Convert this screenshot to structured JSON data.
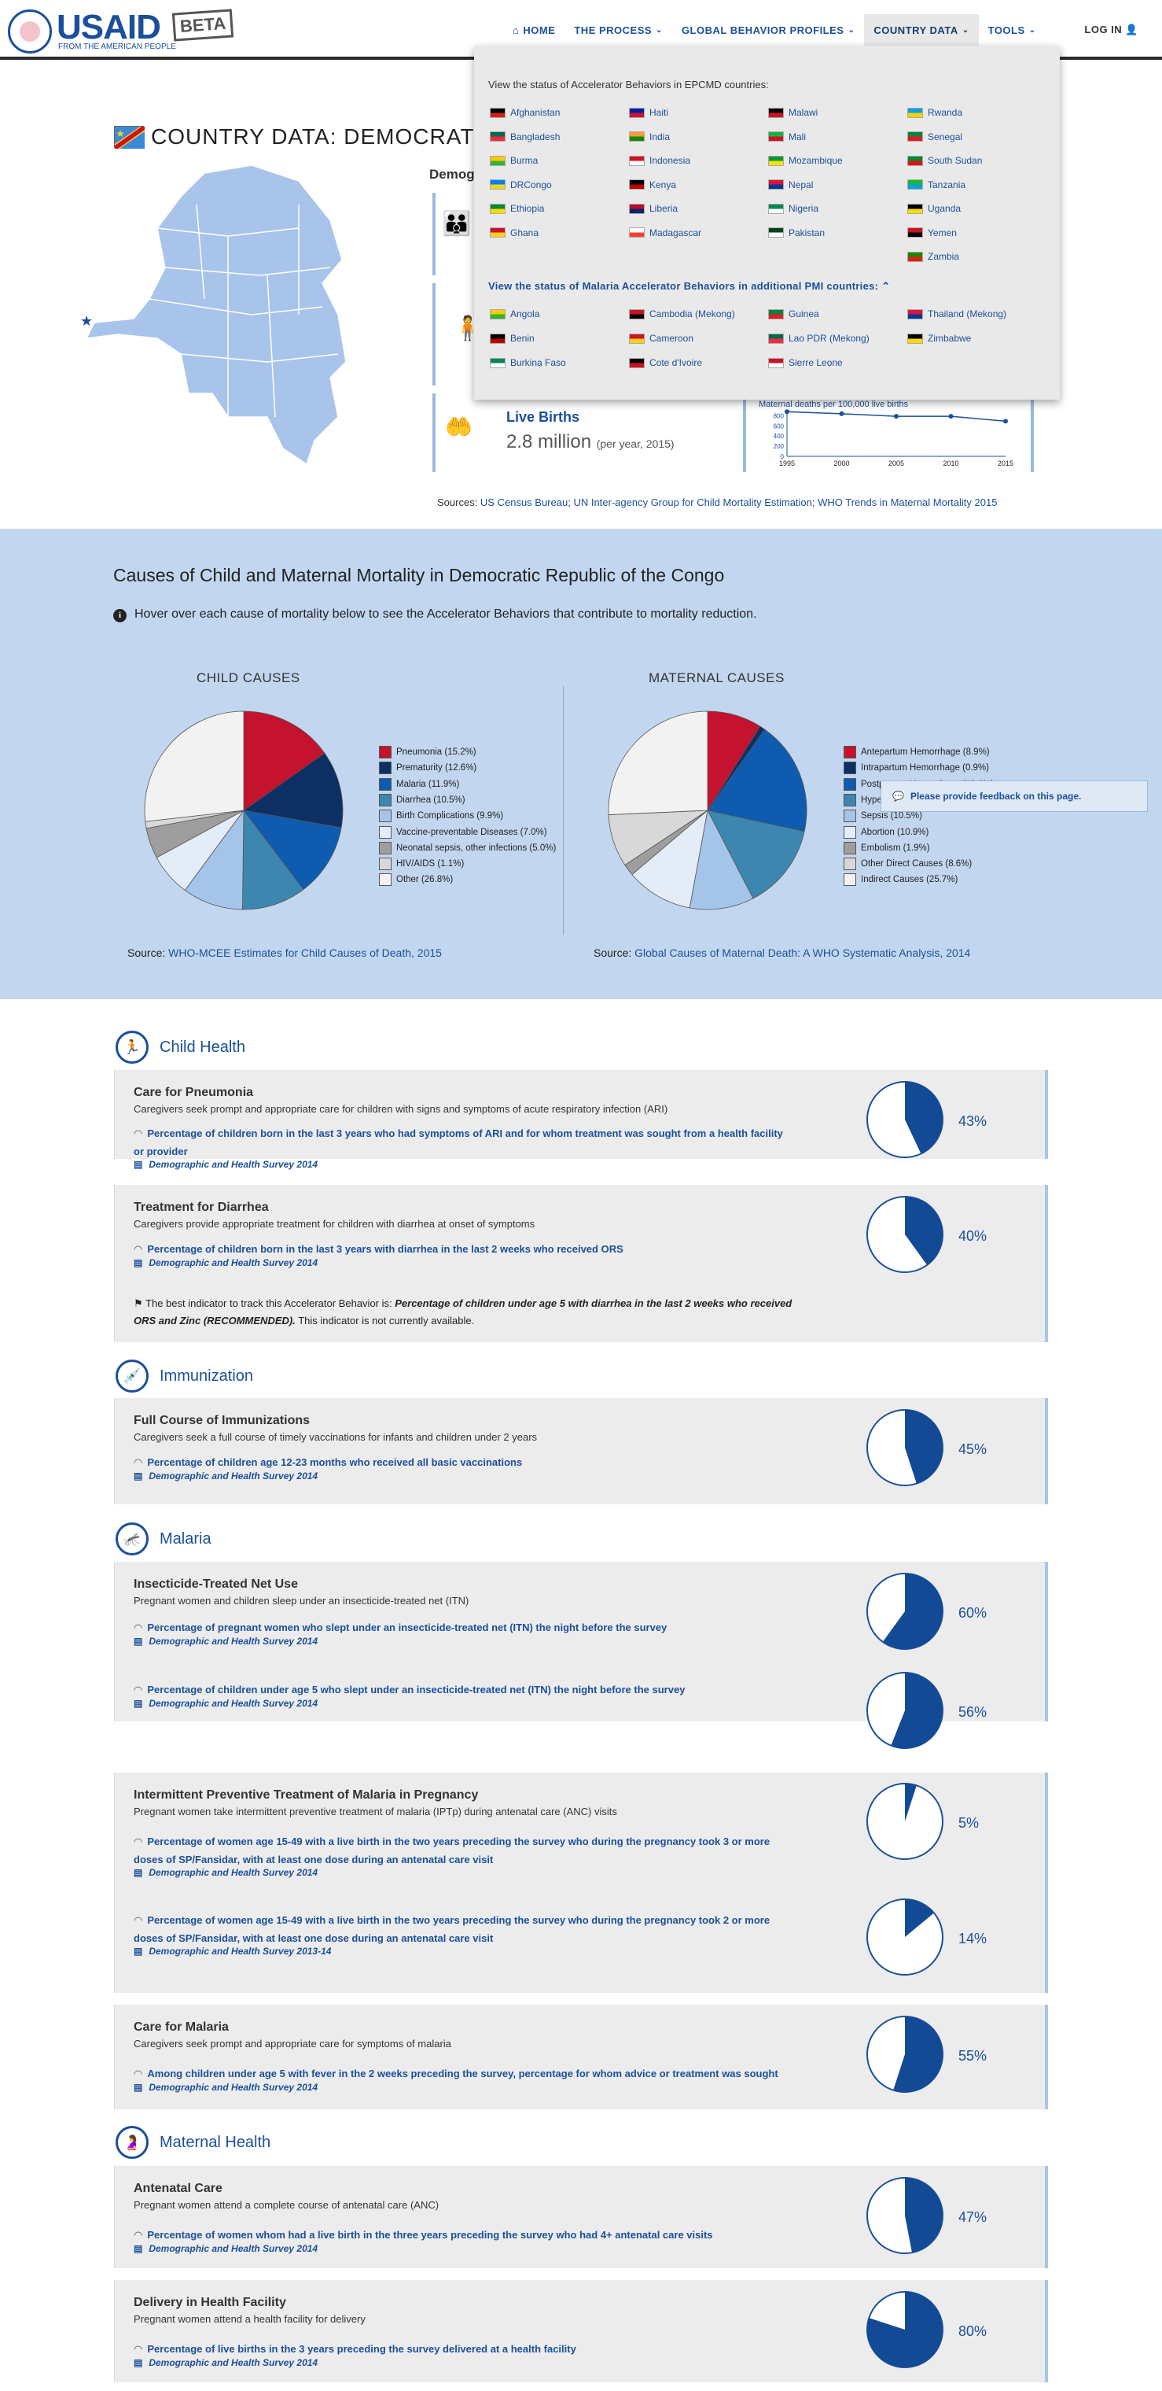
{
  "header": {
    "logo": "USAID",
    "tagline": "FROM THE AMERICAN PEOPLE",
    "beta": "BETA",
    "nav": [
      {
        "label": "HOME",
        "icon": "home-icon"
      },
      {
        "label": "THE PROCESS",
        "icon": "chevron-down-icon"
      },
      {
        "label": "GLOBAL BEHAVIOR PROFILES",
        "icon": "chevron-down-icon"
      },
      {
        "label": "COUNTRY DATA",
        "icon": "chevron-down-icon"
      },
      {
        "label": "TOOLS",
        "icon": "chevron-down-icon"
      }
    ],
    "login": "LOG IN"
  },
  "dropdown": {
    "intro": "View the status of Accelerator Behaviors in EPCMD countries:",
    "epcmd_countries": [
      "Afghanistan",
      "Bangladesh",
      "Burma",
      "DRCongo",
      "Ethiopia",
      "Ghana",
      "Haiti",
      "India",
      "Indonesia",
      "Kenya",
      "Liberia",
      "Madagascar",
      "Malawi",
      "Mali",
      "Mozambique",
      "Nepal",
      "Nigeria",
      "Pakistan",
      "Rwanda",
      "Senegal",
      "South Sudan",
      "Tanzania",
      "Uganda",
      "Yemen",
      "Zambia"
    ],
    "malaria_heading": "View the status of Malaria Accelerator Behaviors in additional PMI countries:",
    "pmi_countries": [
      "Angola",
      "Benin",
      "Burkina Faso",
      "Cambodia (Mekong)",
      "Cameroon",
      "Cote d'Ivoire",
      "Guinea",
      "Lao PDR (Mekong)",
      "Sierre Leone",
      "Thailand (Mekong)",
      "Zimbabwe"
    ]
  },
  "country": {
    "title": "COUNTRY DATA: DEMOCRATIC REPUBLIC OF THE CONGO",
    "demo_heading": "Demographics",
    "live_births_label": "Live Births",
    "live_births_value": "2.8 million",
    "live_births_unit": "(per year, 2015)",
    "mm_chart_label": "Maternal deaths per 100,000 live births",
    "sources_prefix": "Sources: ",
    "sources": [
      "US Census Bureau",
      "UN Inter-agency Group for Child Mortality Estimation",
      "WHO Trends in Maternal Mortality 2015"
    ]
  },
  "chart_data": [
    {
      "type": "line",
      "title": "",
      "ylabel": "Maternal deaths per 100,000 live births",
      "x": [
        1995,
        2000,
        2005,
        2010,
        2015
      ],
      "y": [
        880,
        840,
        790,
        790,
        693
      ],
      "y_ticks": [
        0,
        200,
        400,
        600,
        800
      ],
      "ylim": [
        0,
        900
      ]
    },
    {
      "type": "pie",
      "title": "CHILD CAUSES",
      "labels": [
        "Pneumonia (15.2%)",
        "Prematurity (12.6%)",
        "Malaria (11.9%)",
        "Diarrhea (10.5%)",
        "Birth Complications (9.9%)",
        "Vaccine-preventable Diseases (7.0%)",
        "Neonatal sepsis, other infections (5.0%)",
        "HIV/AIDS (1.1%)",
        "Other (26.8%)"
      ],
      "values": [
        15.2,
        12.6,
        11.9,
        10.5,
        9.9,
        7.0,
        5.0,
        1.1,
        26.8
      ],
      "colors": [
        "#c4122f",
        "#0d2f63",
        "#0f5bb0",
        "#3d86b0",
        "#a5c4ea",
        "#e3ecf7",
        "#9e9e9e",
        "#d8d8d8",
        "#f2f2f2"
      ],
      "source_prefix": "Source: ",
      "source": "WHO-MCEE Estimates for Child Causes of Death, 2015"
    },
    {
      "type": "pie",
      "title": "MATERNAL CAUSES",
      "labels": [
        "Antepartum Hemorrhage (8.9%)",
        "Intrapartum Hemorrhage (0.9%)",
        "Postpartum Hemorrhage (18.6%)",
        "Hypertension (14.0%)",
        "Sepsis (10.5%)",
        "Abortion (10.9%)",
        "Embolism (1.9%)",
        "Other Direct Causes (8.6%)",
        "Indirect Causes (25.7%)"
      ],
      "values": [
        8.9,
        0.9,
        18.6,
        14.0,
        10.5,
        10.9,
        1.9,
        8.6,
        25.7
      ],
      "colors": [
        "#c4122f",
        "#0d2f63",
        "#0f5bb0",
        "#3d86b0",
        "#a5c4ea",
        "#e3ecf7",
        "#9e9e9e",
        "#d8d8d8",
        "#f2f2f2"
      ],
      "source_prefix": "Source: ",
      "source": "Global Causes of Maternal Death: A WHO Systematic Analysis, 2014"
    }
  ],
  "mortality": {
    "heading": "Causes of Child and Maternal Mortality in Democratic Republic of the Congo",
    "hover_note": "Hover over each cause of mortality below to see the Accelerator Behaviors that contribute to mortality reduction.",
    "feedback": "Please provide feedback on this page."
  },
  "sections": [
    {
      "title": "Child Health",
      "icon": "child-running-icon"
    },
    {
      "title": "Immunization",
      "icon": "syringe-icon"
    },
    {
      "title": "Malaria",
      "icon": "mosquito-icon"
    },
    {
      "title": "Maternal Health",
      "icon": "pregnant-woman-icon"
    }
  ],
  "behaviors": [
    {
      "title": "Care for Pneumonia",
      "desc": "Caregivers seek prompt and appropriate care for children with signs and symptoms of acute respiratory infection (ARI)",
      "indicators": [
        {
          "text": "Percentage of children born in the last 3 years who had symptoms of ARI and for whom treatment was sought from a health facility or provider",
          "survey": "Demographic and Health Survey 2014",
          "pct_label": "43%",
          "value": 43
        }
      ]
    },
    {
      "title": "Treatment for Diarrhea",
      "desc": "Caregivers provide appropriate treatment for children with diarrhea at onset of symptoms",
      "indicators": [
        {
          "text": "Percentage of children born in the last 3 years with diarrhea in the last 2 weeks who received ORS",
          "survey": "Demographic and Health Survey 2014",
          "pct_label": "40%",
          "value": 40
        }
      ],
      "note_prefix": "The best indicator to track this Accelerator Behavior is: ",
      "note_bold": "Percentage of children under age 5 with diarrhea in the last 2 weeks who received ORS and Zinc (RECOMMENDED).",
      "note_suffix": " This indicator is not currently available."
    },
    {
      "title": "Full Course of Immunizations",
      "desc": "Caregivers seek a full course of timely vaccinations for infants and children under 2 years",
      "indicators": [
        {
          "text": "Percentage of children age 12-23 months who received all basic vaccinations",
          "survey": "Demographic and Health Survey 2014",
          "pct_label": "45%",
          "value": 45
        }
      ]
    },
    {
      "title": "Insecticide-Treated Net Use",
      "desc": "Pregnant women and children sleep under an insecticide-treated net (ITN)",
      "indicators": [
        {
          "text": "Percentage of pregnant women who slept under an insecticide-treated net (ITN) the night before the survey",
          "survey": "Demographic and Health Survey 2014",
          "pct_label": "60%",
          "value": 60
        },
        {
          "text": "Percentage of children under age 5 who slept under an insecticide-treated net (ITN) the night before the survey",
          "survey": "Demographic and Health Survey 2014",
          "pct_label": "56%",
          "value": 56
        }
      ]
    },
    {
      "title": "Intermittent Preventive Treatment of Malaria in Pregnancy",
      "desc": "Pregnant women take intermittent preventive treatment of malaria (IPTp) during antenatal care (ANC) visits",
      "indicators": [
        {
          "text": "Percentage of women age 15-49 with a live birth in the two years preceding the survey who during the pregnancy took 3 or more doses of SP/Fansidar, with at least one dose during an antenatal care visit",
          "survey": "Demographic and Health Survey 2014",
          "pct_label": "5%",
          "value": 5
        },
        {
          "text": "Percentage of women age 15-49 with a live birth in the two years preceding the survey who during the pregnancy took 2 or more doses of SP/Fansidar, with at least one dose during an antenatal care visit",
          "survey": "Demographic and Health Survey 2013-14",
          "pct_label": "14%",
          "value": 14
        }
      ]
    },
    {
      "title": "Care for Malaria",
      "desc": "Caregivers seek prompt and appropriate care for symptoms of malaria",
      "indicators": [
        {
          "text": "Among children under age 5 with fever in the 2 weeks preceding the survey, percentage for whom advice or treatment was sought",
          "survey": "Demographic and Health Survey 2014",
          "pct_label": "55%",
          "value": 55
        }
      ]
    },
    {
      "title": "Antenatal Care",
      "desc": "Pregnant women attend a complete course of antenatal care (ANC)",
      "indicators": [
        {
          "text": "Percentage of women whom had a live birth in the three years preceding the survey who had 4+ antenatal care visits",
          "survey": "Demographic and Health Survey 2014",
          "pct_label": "47%",
          "value": 47
        }
      ]
    },
    {
      "title": "Delivery in Health Facility",
      "desc": "Pregnant women attend a health facility for delivery",
      "indicators": [
        {
          "text": "Percentage of live births in the 3 years preceding the survey delivered at a health facility",
          "survey": "Demographic and Health Survey 2014",
          "pct_label": "80%",
          "value": 80
        }
      ]
    }
  ]
}
